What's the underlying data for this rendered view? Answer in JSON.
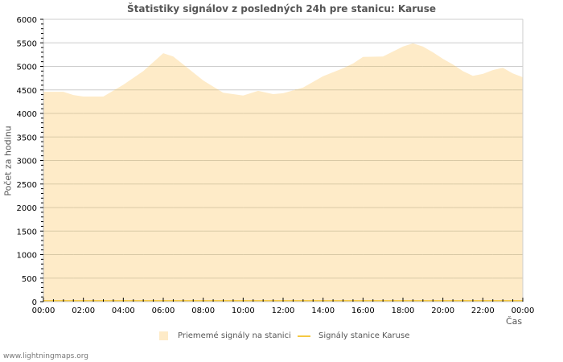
{
  "chart": {
    "title": "Štatistiky signálov z posledných 24h pre stanicu: Karuse",
    "ylabel": "Počet za hodinu",
    "xlabel": "Čas",
    "footer": "www.lightningmaps.org",
    "legend": [
      {
        "label": "Priememé signály na stanici",
        "kind": "area",
        "color": "#feebc8"
      },
      {
        "label": "Signály stanice Karuse",
        "kind": "line",
        "color": "#f5c842"
      }
    ]
  },
  "chart_data": {
    "type": "area",
    "title": "Štatistiky signálov z posledných 24h pre stanicu: Karuse",
    "xlabel": "Čas",
    "ylabel": "Počet za hodinu",
    "ylim": [
      0,
      6000
    ],
    "yticks": [
      0,
      500,
      1000,
      1500,
      2000,
      2500,
      3000,
      3500,
      4000,
      4500,
      5000,
      5500,
      6000
    ],
    "xticks": [
      "00:00",
      "02:00",
      "04:00",
      "06:00",
      "08:00",
      "10:00",
      "12:00",
      "14:00",
      "16:00",
      "18:00",
      "20:00",
      "22:00",
      "00:00"
    ],
    "grid": true,
    "legend_position": "bottom",
    "series": [
      {
        "name": "Priememé signály na stanici",
        "type": "area",
        "color": "#feebc8",
        "x_hours": [
          0,
          1,
          1.5,
          2,
          3,
          4,
          5,
          6,
          6.5,
          7,
          8,
          9,
          10,
          10.75,
          11.5,
          12,
          13,
          14,
          15,
          15.5,
          16,
          17,
          18,
          18.5,
          19,
          19.5,
          20,
          20.5,
          21,
          21.5,
          22,
          22.5,
          23,
          23.5,
          24
        ],
        "values": [
          4460,
          4460,
          4390,
          4360,
          4360,
          4610,
          4900,
          5280,
          5210,
          5040,
          4700,
          4440,
          4380,
          4480,
          4410,
          4430,
          4550,
          4790,
          4960,
          5060,
          5200,
          5210,
          5420,
          5490,
          5420,
          5300,
          5160,
          5040,
          4900,
          4800,
          4840,
          4920,
          4970,
          4850,
          4770
        ]
      },
      {
        "name": "Signály stanice Karuse",
        "type": "line",
        "color": "#f5c842",
        "x_hours": [
          0,
          24
        ],
        "values": [
          0,
          0
        ]
      }
    ]
  }
}
